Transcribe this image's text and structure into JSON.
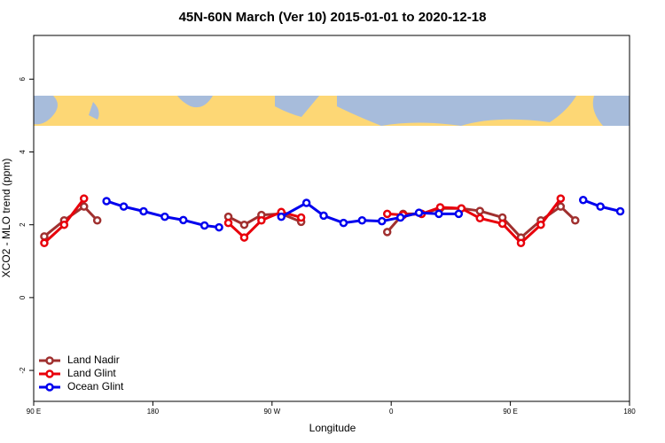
{
  "chart_data": {
    "type": "line",
    "title": "45N-60N March (Ver 10)   2015-01-01 to 2020-12-18",
    "x_label": "Longitude",
    "y_label": "XCO2 - MLO trend (ppm)",
    "xlim": [
      90,
      540
    ],
    "ylim": [
      -2.85,
      7.2
    ],
    "xticks": [
      {
        "value": 90,
        "label": "90 E"
      },
      180,
      {
        "value": 270,
        "label": "90 W"
      },
      {
        "value": 360,
        "label": "0"
      },
      {
        "value": 450,
        "label": "90 E"
      },
      {
        "value": 540,
        "label": "180"
      }
    ],
    "yticks": [
      -2,
      0,
      2,
      4,
      6
    ],
    "legend": "bottom-left",
    "series": [
      {
        "name": "Land Nadir",
        "color": "#a0302f",
        "x": [
          98,
          113,
          128,
          138,
          null,
          237,
          249,
          262,
          277,
          292,
          null,
          357,
          369,
          383,
          397,
          413,
          427,
          444,
          458,
          473,
          488,
          499
        ],
        "values": [
          1.68,
          2.12,
          2.5,
          2.12,
          null,
          2.22,
          2.0,
          2.27,
          2.3,
          2.08,
          null,
          1.8,
          2.3,
          2.3,
          2.45,
          2.45,
          2.38,
          2.2,
          1.65,
          2.12,
          2.5,
          2.12
        ]
      },
      {
        "name": "Land Glint",
        "color": "#e8000b",
        "x": [
          98,
          113,
          128,
          null,
          237,
          249,
          262,
          277,
          292,
          null,
          357,
          369,
          383,
          397,
          413,
          427,
          444,
          458,
          473,
          488
        ],
        "values": [
          1.5,
          2.0,
          2.72,
          null,
          2.05,
          1.65,
          2.12,
          2.35,
          2.2,
          null,
          2.3,
          2.27,
          2.3,
          2.48,
          2.45,
          2.18,
          2.03,
          1.5,
          2.0,
          2.72
        ]
      },
      {
        "name": "Ocean Glint",
        "color": "#0000ee",
        "x": [
          145,
          158,
          173,
          189,
          203,
          219,
          230,
          null,
          277,
          296,
          309,
          324,
          338,
          353,
          367,
          381,
          396,
          411,
          null,
          505,
          518,
          533
        ],
        "values": [
          2.65,
          2.5,
          2.37,
          2.22,
          2.13,
          1.98,
          1.93,
          null,
          2.22,
          2.6,
          2.25,
          2.05,
          2.12,
          2.1,
          2.2,
          2.33,
          2.3,
          2.3,
          null,
          2.68,
          2.5,
          2.37
        ]
      }
    ]
  }
}
